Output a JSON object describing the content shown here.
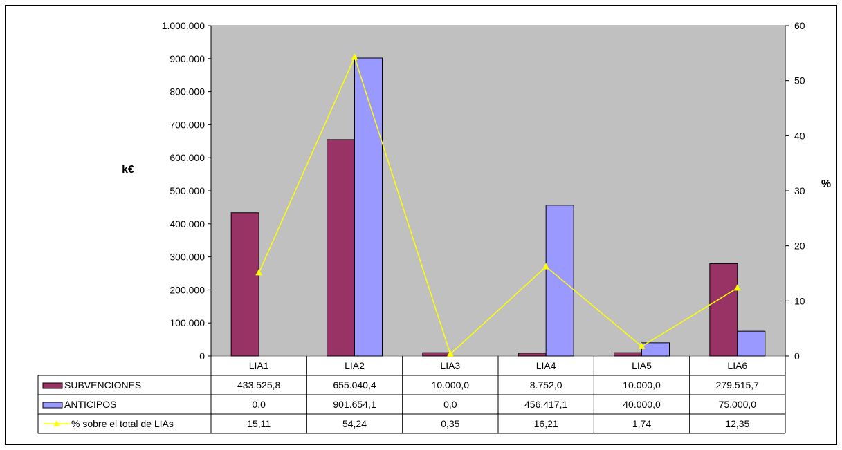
{
  "chart_data": {
    "type": "bar",
    "categories": [
      "LIA1",
      "LIA2",
      "LIA3",
      "LIA4",
      "LIA5",
      "LIA6"
    ],
    "series": [
      {
        "name": "SUBVENCIONES",
        "kind": "bar",
        "axis": "left",
        "color": "#993366",
        "values": [
          433525.8,
          655040.4,
          10000.0,
          8752.0,
          10000.0,
          279515.7
        ],
        "labels": [
          "433.525,8",
          "655.040,4",
          "10.000,0",
          "8.752,0",
          "10.000,0",
          "279.515,7"
        ]
      },
      {
        "name": "ANTICIPOS",
        "kind": "bar",
        "axis": "left",
        "color": "#9999FF",
        "values": [
          0.0,
          901654.1,
          0.0,
          456417.1,
          40000.0,
          75000.0
        ],
        "labels": [
          "0,0",
          "901.654,1",
          "0,0",
          "456.417,1",
          "40.000,0",
          "75.000,0"
        ]
      },
      {
        "name": "% sobre el total de LIAs",
        "kind": "line",
        "axis": "right",
        "color": "#FFFF00",
        "values": [
          15.11,
          54.24,
          0.35,
          16.21,
          1.74,
          12.35
        ],
        "labels": [
          "15,11",
          "54,24",
          "0,35",
          "16,21",
          "1,74",
          "12,35"
        ]
      }
    ],
    "ylabel_left": "k€",
    "ylabel_right": "%",
    "ylim_left": [
      0,
      1000000
    ],
    "ylim_right": [
      0,
      60
    ],
    "yticks_left": [
      "0",
      "100.000",
      "200.000",
      "300.000",
      "400.000",
      "500.000",
      "600.000",
      "700.000",
      "800.000",
      "900.000",
      "1.000.000"
    ],
    "yticks_right": [
      "0",
      "10",
      "20",
      "30",
      "40",
      "50",
      "60"
    ],
    "plot_background": "#C0C0C0",
    "grid": false,
    "legend": "data-table"
  }
}
